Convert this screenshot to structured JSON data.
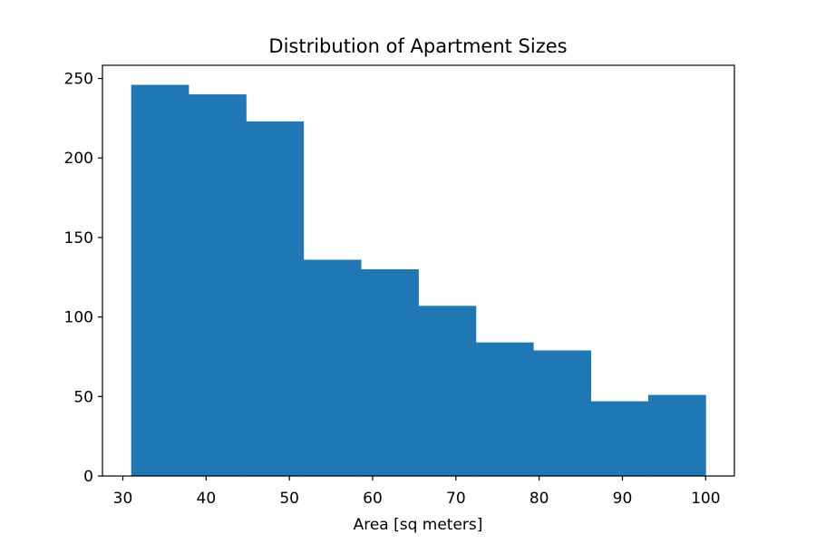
{
  "chart_data": {
    "type": "bar",
    "title": "Distribution of Apartment Sizes",
    "xlabel": "Area [sq meters]",
    "ylabel": "",
    "bin_edges": [
      31,
      37.9,
      44.8,
      51.7,
      58.6,
      65.5,
      72.4,
      79.3,
      86.2,
      93.1,
      100
    ],
    "values": [
      246,
      240,
      223,
      136,
      130,
      107,
      84,
      79,
      47,
      51
    ],
    "xlim": [
      27.55,
      103.45
    ],
    "ylim": [
      0,
      258.3
    ],
    "xticks": [
      30,
      40,
      50,
      60,
      70,
      80,
      90,
      100
    ],
    "yticks": [
      0,
      50,
      100,
      150,
      200,
      250
    ],
    "grid": false,
    "bar_color": "#1f77b4"
  }
}
